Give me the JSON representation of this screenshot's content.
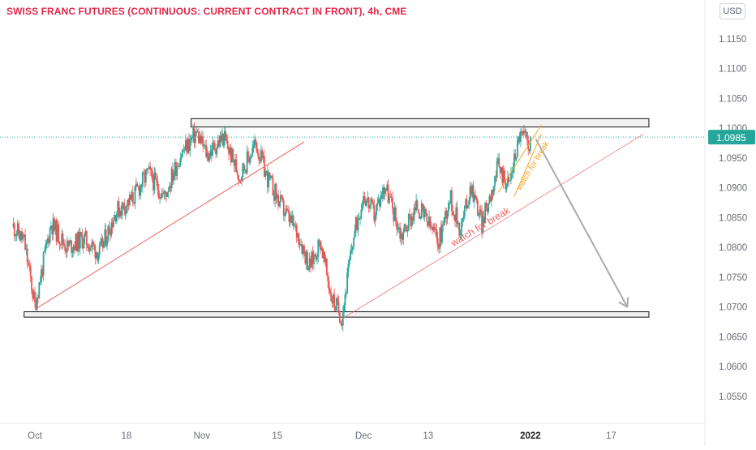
{
  "title": "SWISS FRANC FUTURES (CONTINUOUS: CURRENT CONTRACT IN FRONT), 4h, CME",
  "currency_button": "USD",
  "colors": {
    "up": "#26a69a",
    "down": "#ef5350",
    "title": "#e0284a",
    "trendline": "#f06060",
    "orange": "#f5a623",
    "arrow": "#aaaaaa",
    "price_tag": "#26a69a"
  },
  "chart_data": {
    "type": "candlestick",
    "symbol": "SWISS FRANC FUTURES",
    "interval": "4h",
    "exchange": "CME",
    "y_axis": {
      "range": [
        1.0505,
        1.1215
      ],
      "ticks": [
        "1.1150",
        "1.1100",
        "1.1050",
        "1.1000",
        "1.0950",
        "1.0900",
        "1.0850",
        "1.0800",
        "1.0750",
        "1.0700",
        "1.0650",
        "1.0600",
        "1.0550"
      ]
    },
    "x_axis": {
      "ticks": [
        {
          "label": "Oct",
          "t": 0
        },
        {
          "label": "18",
          "t": 17
        },
        {
          "label": "Nov",
          "t": 31
        },
        {
          "label": "15",
          "t": 45
        },
        {
          "label": "Dec",
          "t": 61
        },
        {
          "label": "13",
          "t": 73
        },
        {
          "label": "2022",
          "t": 92,
          "bold": true
        },
        {
          "label": "17",
          "t": 107
        }
      ]
    },
    "last_price": "1.0985",
    "last_price_value": 1.0985,
    "price_path": [
      [
        -4,
        1.0835
      ],
      [
        -2,
        1.081
      ],
      [
        0,
        1.0702
      ],
      [
        3,
        1.084
      ],
      [
        6,
        1.08
      ],
      [
        9,
        1.0815
      ],
      [
        12,
        1.079
      ],
      [
        15,
        1.086
      ],
      [
        18,
        1.088
      ],
      [
        21,
        1.0925
      ],
      [
        24,
        1.0885
      ],
      [
        27,
        1.0955
      ],
      [
        30,
        1.0992
      ],
      [
        32,
        1.0955
      ],
      [
        35,
        1.0985
      ],
      [
        38,
        1.092
      ],
      [
        41,
        1.0975
      ],
      [
        43,
        1.092
      ],
      [
        46,
        1.0865
      ],
      [
        49,
        1.082
      ],
      [
        51,
        1.0768
      ],
      [
        53,
        1.081
      ],
      [
        55,
        1.0718
      ],
      [
        57,
        1.0683
      ],
      [
        59,
        1.081
      ],
      [
        61,
        1.089
      ],
      [
        63,
        1.0855
      ],
      [
        65,
        1.0905
      ],
      [
        68,
        1.082
      ],
      [
        71,
        1.087
      ],
      [
        73,
        1.084
      ],
      [
        75,
        1.081
      ],
      [
        77,
        1.0885
      ],
      [
        79,
        1.083
      ],
      [
        81,
        1.0905
      ],
      [
        83,
        1.084
      ],
      [
        86,
        1.0935
      ],
      [
        88,
        1.0905
      ],
      [
        90,
        1.099
      ],
      [
        92,
        1.0975
      ]
    ],
    "resistance_zone": {
      "t_start": 29,
      "t_end": 114,
      "y_low": 1.1002,
      "y_high": 1.1016
    },
    "support_zone": {
      "t_start": -2,
      "t_end": 114,
      "y_low": 1.0683,
      "y_high": 1.0692
    },
    "trendlines": [
      {
        "from": [
          0,
          1.0696
        ],
        "to": [
          50,
          1.0977
        ],
        "color": "trendline",
        "width": 1
      },
      {
        "from": [
          57,
          1.068
        ],
        "to": [
          113,
          1.099
        ],
        "color": "trendline",
        "width": 0.7
      },
      {
        "from": [
          86,
          1.0892
        ],
        "to": [
          94,
          1.1005
        ],
        "color": "orange",
        "width": 1
      },
      {
        "from": [
          89,
          1.0885
        ],
        "to": [
          94,
          1.099
        ],
        "color": "orange",
        "width": 1
      }
    ],
    "projection_arrow": {
      "from": [
        93,
        1.0982
      ],
      "to": [
        110,
        1.07
      ]
    },
    "annotations": [
      {
        "text": "watch for break",
        "t": 83,
        "y": 1.083,
        "angle": -31,
        "color": "trendline",
        "size": 12
      },
      {
        "text": "watch for break",
        "t": 92.8,
        "y": 1.0935,
        "angle": -59,
        "color": "orange",
        "size": 10
      }
    ]
  }
}
